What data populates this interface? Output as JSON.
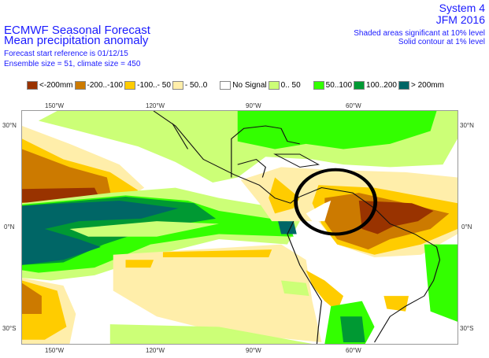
{
  "header": {
    "title1": "ECMWF Seasonal Forecast",
    "title2": "Mean precipitation anomaly",
    "forecast_ref": "Forecast start reference is 01/12/15",
    "ensemble": "Ensemble size = 51, climate size = 450",
    "system": "System 4",
    "period": "JFM 2016",
    "sig1": "Shaded areas significant at 10% level",
    "sig2": "Solid contour at 1% level"
  },
  "legend": [
    {
      "label": "<-200mm",
      "color": "#993300"
    },
    {
      "label": "-200..-100",
      "color": "#cc7a00"
    },
    {
      "label": "-100..- 50",
      "color": "#ffcc00"
    },
    {
      "label": "- 50..0",
      "color": "#ffeeaa"
    },
    {
      "label": "No Signal",
      "color": "#ffffff"
    },
    {
      "label": "0.. 50",
      "color": "#ccff77"
    },
    {
      "label": "50..100",
      "color": "#33ff00"
    },
    {
      "label": "100..200",
      "color": "#009933"
    },
    {
      "label": "> 200mm",
      "color": "#006666"
    }
  ],
  "axes": {
    "lon": [
      "150°W",
      "120°W",
      "90°W",
      "60°W"
    ],
    "lat": [
      "30°N",
      "0°N",
      "30°S"
    ]
  }
}
